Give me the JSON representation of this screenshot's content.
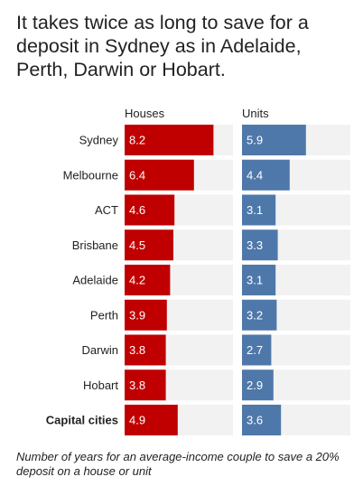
{
  "title": "It takes twice as long to save for a deposit in Sydney as in Adelaide, Perth, Darwin or Hobart.",
  "caption": "Number of years for an average-income couple to save a 20% deposit on a house or unit",
  "chart_data": {
    "type": "bar",
    "orientation": "horizontal",
    "categories": [
      "Sydney",
      "Melbourne",
      "ACT",
      "Brisbane",
      "Adelaide",
      "Perth",
      "Darwin",
      "Hobart",
      "Capital cities"
    ],
    "highlighted_category": "Capital cities",
    "series": [
      {
        "name": "Houses",
        "values": [
          8.2,
          6.4,
          4.6,
          4.5,
          4.2,
          3.9,
          3.8,
          3.8,
          4.9
        ],
        "color": "#c00000"
      },
      {
        "name": "Units",
        "values": [
          5.9,
          4.4,
          3.1,
          3.3,
          3.1,
          3.2,
          2.7,
          2.9,
          3.6
        ],
        "color": "#4f78aa"
      }
    ],
    "track_color": "#f2f2f2",
    "xlim": [
      0,
      10
    ],
    "grid": false,
    "legend": "none"
  }
}
